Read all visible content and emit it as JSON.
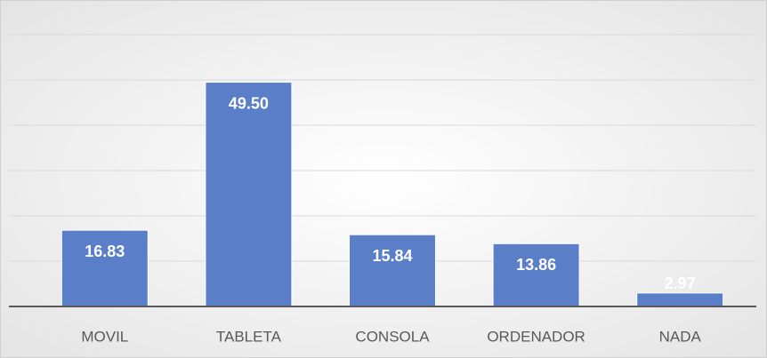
{
  "chart_data": {
    "type": "bar",
    "categories": [
      "MOVIL",
      "TABLETA",
      "CONSOLA",
      "ORDENADOR",
      "NADA"
    ],
    "values": [
      16.83,
      49.5,
      15.84,
      13.86,
      2.97
    ],
    "value_labels": [
      "16.83",
      "49.50",
      "15.84",
      "13.86",
      "2.97"
    ],
    "color": "#5a7fc8",
    "ylim": [
      0,
      60
    ],
    "yticks": [
      0,
      10,
      20,
      30,
      40,
      50,
      60
    ],
    "grid": true
  }
}
